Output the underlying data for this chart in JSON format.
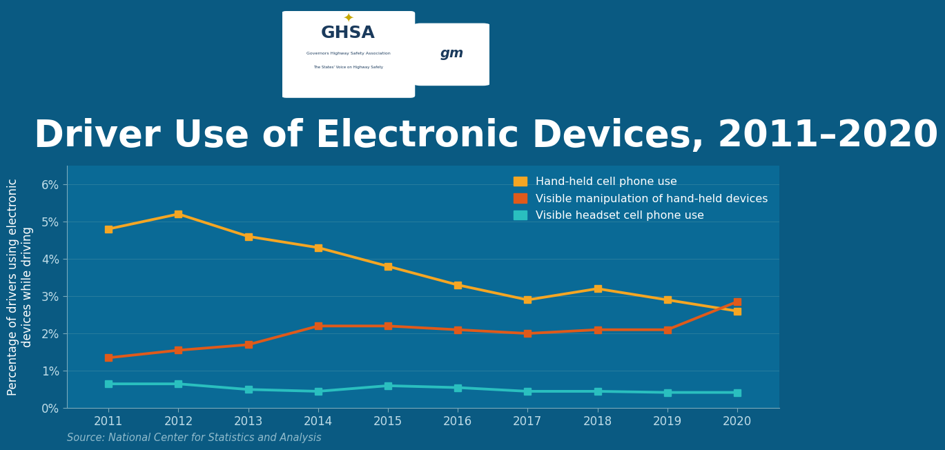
{
  "title": "Driver Use of Electronic Devices, 2011–2020",
  "ylabel": "Percentage of drivers using electronic\ndevices while driving",
  "source": "Source: National Center for Statistics and Analysis",
  "background_color": "#0a5a82",
  "plot_background_color": "#0a6a96",
  "years": [
    2011,
    2012,
    2013,
    2014,
    2015,
    2016,
    2017,
    2018,
    2019,
    2020
  ],
  "handheld_phone": [
    4.8,
    5.2,
    4.6,
    4.3,
    3.8,
    3.3,
    2.9,
    3.2,
    2.9,
    2.6
  ],
  "visible_manipulation": [
    1.35,
    1.55,
    1.7,
    2.2,
    2.2,
    2.1,
    2.0,
    2.1,
    2.1,
    2.85
  ],
  "visible_headset": [
    0.65,
    0.65,
    0.5,
    0.45,
    0.6,
    0.55,
    0.45,
    0.45,
    0.42,
    0.42
  ],
  "handheld_color": "#f5a623",
  "manipulation_color": "#e05a1a",
  "headset_color": "#2abfbf",
  "line_width": 2.8,
  "marker_size": 7,
  "marker_style": "s",
  "legend_labels": [
    "Hand-held cell phone use",
    "Visible manipulation of hand-held devices",
    "Visible headset cell phone use"
  ],
  "ylim": [
    0,
    0.065
  ],
  "yticks": [
    0,
    0.01,
    0.02,
    0.03,
    0.04,
    0.05,
    0.06
  ],
  "ytick_labels": [
    "0%",
    "1%",
    "2%",
    "3%",
    "4%",
    "5%",
    "6%"
  ],
  "title_color": "#ffffff",
  "title_fontsize": 38,
  "axis_color": "#7aaabb",
  "tick_color": "#c0dde8",
  "legend_text_color": "#ffffff",
  "ylabel_color": "#ffffff",
  "source_color": "#90bbcc",
  "grid_color": "#5599aa",
  "grid_alpha": 0.4
}
